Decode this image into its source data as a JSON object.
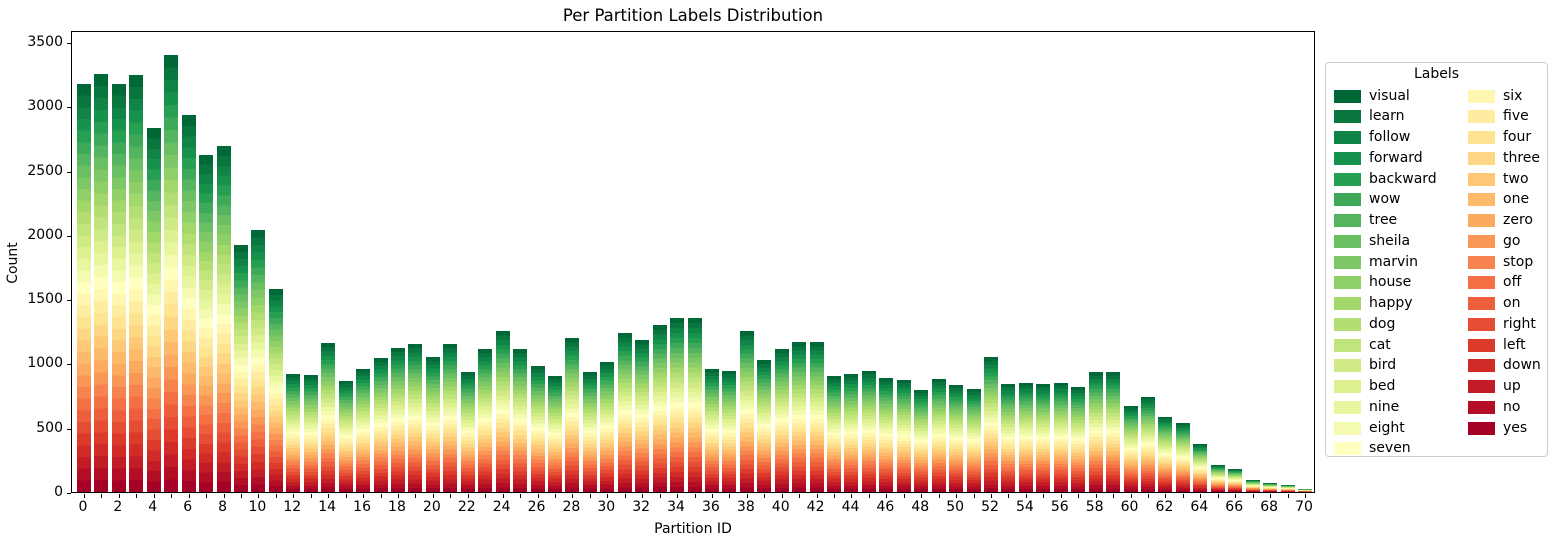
{
  "page_title": "Per Partition Labels Distribution",
  "chart_data": {
    "type": "bar",
    "stacked": true,
    "title": "Per Partition Labels Distribution",
    "xlabel": "Partition ID",
    "ylabel": "Count",
    "grid": false,
    "background": "#ffffff",
    "colormap": "RdYlGn (green top to red bottom)",
    "ylim": [
      0,
      3590
    ],
    "y_ticks": [
      0,
      500,
      1000,
      1500,
      2000,
      2500,
      3000,
      3500
    ],
    "x_tick_labels": [
      "0",
      "2",
      "4",
      "6",
      "8",
      "10",
      "12",
      "14",
      "16",
      "18",
      "20",
      "22",
      "24",
      "26",
      "28",
      "30",
      "32",
      "34",
      "36",
      "38",
      "40",
      "42",
      "44",
      "46",
      "48",
      "50",
      "52",
      "54",
      "56",
      "58",
      "60",
      "62",
      "64",
      "66",
      "68",
      "70"
    ],
    "partitions": [
      0,
      1,
      2,
      3,
      4,
      5,
      6,
      7,
      8,
      9,
      10,
      11,
      12,
      13,
      14,
      15,
      16,
      17,
      18,
      19,
      20,
      21,
      22,
      23,
      24,
      25,
      26,
      27,
      28,
      29,
      30,
      31,
      32,
      33,
      34,
      35,
      36,
      37,
      38,
      39,
      40,
      41,
      42,
      43,
      44,
      45,
      46,
      47,
      48,
      49,
      50,
      51,
      52,
      53,
      54,
      55,
      56,
      57,
      58,
      59,
      60,
      61,
      62,
      63,
      64,
      65,
      66,
      67,
      68,
      69,
      70
    ],
    "totals": [
      3170,
      3250,
      3170,
      3240,
      2830,
      3400,
      2930,
      2620,
      2690,
      1920,
      2040,
      1580,
      920,
      910,
      1160,
      860,
      960,
      1040,
      1120,
      1150,
      1050,
      1150,
      930,
      1110,
      1250,
      1110,
      980,
      900,
      1200,
      930,
      1010,
      1240,
      1180,
      1300,
      1350,
      1350,
      960,
      940,
      1250,
      1030,
      1110,
      1170,
      1170,
      900,
      920,
      940,
      890,
      870,
      790,
      880,
      830,
      800,
      1050,
      840,
      850,
      840,
      850,
      820,
      930,
      930,
      670,
      740,
      580,
      540,
      370,
      210,
      180,
      95,
      70,
      55,
      20
    ],
    "legend": {
      "title": "Labels",
      "position": "outside-right",
      "columns": 2,
      "rows_per_column": 18
    },
    "labels": [
      {
        "name": "visual",
        "color": "#006837"
      },
      {
        "name": "learn",
        "color": "#08763e"
      },
      {
        "name": "follow",
        "color": "#0f8446"
      },
      {
        "name": "forward",
        "color": "#17924d"
      },
      {
        "name": "backward",
        "color": "#279f53"
      },
      {
        "name": "wow",
        "color": "#3ea959"
      },
      {
        "name": "tree",
        "color": "#54b45f"
      },
      {
        "name": "sheila",
        "color": "#6abf63"
      },
      {
        "name": "marvin",
        "color": "#7dc766"
      },
      {
        "name": "house",
        "color": "#8fcf68"
      },
      {
        "name": "happy",
        "color": "#a2d76a"
      },
      {
        "name": "dog",
        "color": "#b2de72"
      },
      {
        "name": "cat",
        "color": "#c1e57c"
      },
      {
        "name": "bird",
        "color": "#d0eb85"
      },
      {
        "name": "bed",
        "color": "#def191"
      },
      {
        "name": "nine",
        "color": "#e9f6a0"
      },
      {
        "name": "eight",
        "color": "#f4fab0"
      },
      {
        "name": "seven",
        "color": "#ffffbf"
      },
      {
        "name": "six",
        "color": "#fff6b0"
      },
      {
        "name": "five",
        "color": "#feeda0"
      },
      {
        "name": "four",
        "color": "#fee491"
      },
      {
        "name": "three",
        "color": "#fed784"
      },
      {
        "name": "two",
        "color": "#fec877"
      },
      {
        "name": "one",
        "color": "#fdba6b"
      },
      {
        "name": "zero",
        "color": "#fcaa5f"
      },
      {
        "name": "go",
        "color": "#fa9756"
      },
      {
        "name": "stop",
        "color": "#f7844e"
      },
      {
        "name": "off",
        "color": "#f57145"
      },
      {
        "name": "on",
        "color": "#ed5f3c"
      },
      {
        "name": "right",
        "color": "#e54d34"
      },
      {
        "name": "left",
        "color": "#dc3b2c"
      },
      {
        "name": "down",
        "color": "#d12a27"
      },
      {
        "name": "up",
        "color": "#c21c27"
      },
      {
        "name": "no",
        "color": "#b40e26"
      },
      {
        "name": "yes",
        "color": "#a50026"
      }
    ]
  }
}
